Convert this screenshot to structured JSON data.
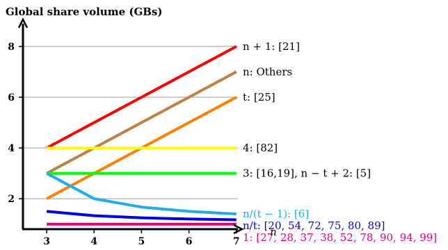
{
  "chart_data": {
    "type": "line",
    "title": "Global share volume (GBs)",
    "xlabel": "n",
    "ylabel": "",
    "x": [
      3,
      4,
      5,
      6,
      7
    ],
    "xticks": [
      "3",
      "4",
      "5",
      "6",
      "7"
    ],
    "yticks": [
      "2",
      "4",
      "6",
      "8"
    ],
    "ytick_values": [
      2,
      4,
      6,
      8
    ],
    "xlim": [
      2.5,
      7.15
    ],
    "ylim": [
      0.8,
      8.9
    ],
    "grid": "horizontal",
    "series": [
      {
        "name": "n + 1: [21]",
        "color": "#ff0000",
        "values": [
          4,
          5,
          6,
          7,
          8
        ]
      },
      {
        "name": "n: Others",
        "color": "#bf8040",
        "values": [
          3,
          4,
          5,
          6,
          7
        ]
      },
      {
        "name": "t: [25]",
        "color": "#ff8000",
        "values": [
          2,
          3,
          4,
          5,
          6
        ]
      },
      {
        "name": "4: [82]",
        "color": "#ffff00",
        "values": [
          4,
          4,
          4,
          4,
          4
        ]
      },
      {
        "name": "3: [16,19], n − t + 2: [5]",
        "color": "#00ff00",
        "values": [
          3,
          3,
          3,
          3,
          3
        ]
      },
      {
        "name": "n/(t − 1): [6]",
        "color": "#1eaee6",
        "values": [
          3,
          2,
          1.67,
          1.5,
          1.4
        ]
      },
      {
        "name": "n/t: [20, 54, 72, 75, 80, 89]",
        "color": "#0000e6",
        "values": [
          1.5,
          1.33,
          1.25,
          1.2,
          1.17
        ]
      },
      {
        "name": "1: [27, 28, 37, 38, 52, 78, 90, 94, 99]",
        "color": "#e6007e",
        "values": [
          1,
          1,
          1,
          1,
          1
        ]
      }
    ]
  }
}
